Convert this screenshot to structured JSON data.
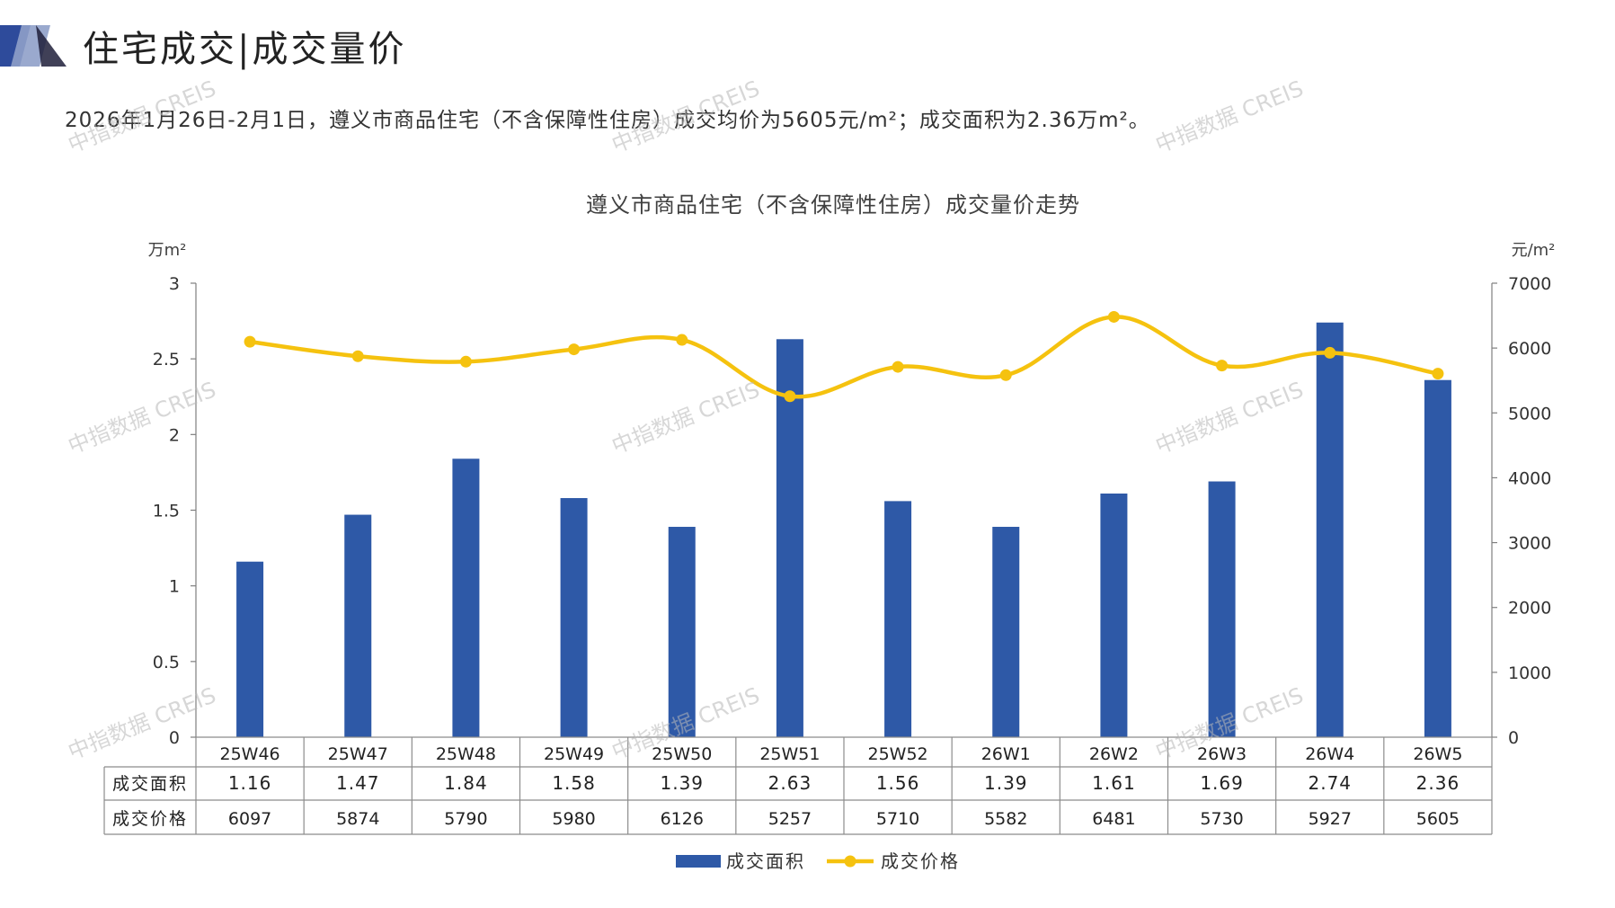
{
  "header": {
    "title": "住宅成交|成交量价",
    "summary": "2026年1月26日-2月1日，遵义市商品住宅（不含保障性住房）成交均价为5605元/m²；成交面积为2.36万m²。"
  },
  "watermark_text": "中指数据 CREIS",
  "colors": {
    "bar": "#2E59A7",
    "line": "#F5C20F",
    "axis": "#7f7f7f",
    "title_logo": "#2E4B9B"
  },
  "chart_data": {
    "type": "bar",
    "title": "遵义市商品住宅（不含保障性住房）成交量价走势",
    "ylabel_left": "万m²",
    "ylabel_right": "元/m²",
    "ylim_left": [
      0,
      3
    ],
    "ylim_right": [
      0,
      7000
    ],
    "yticks_left": [
      "0",
      "0.5",
      "1",
      "1.5",
      "2",
      "2.5",
      "3"
    ],
    "yticks_right": [
      "0",
      "1000",
      "2000",
      "3000",
      "4000",
      "5000",
      "6000",
      "7000"
    ],
    "categories": [
      "25W46",
      "25W47",
      "25W48",
      "25W49",
      "25W50",
      "25W51",
      "25W52",
      "26W1",
      "26W2",
      "26W3",
      "26W4",
      "26W5"
    ],
    "series": [
      {
        "name": "成交面积",
        "type": "bar",
        "axis": "left",
        "values": [
          1.16,
          1.47,
          1.84,
          1.58,
          1.39,
          2.63,
          1.56,
          1.39,
          1.61,
          1.69,
          2.74,
          2.36
        ],
        "labels": [
          "1.16",
          "1.47",
          "1.84",
          "1.58",
          "1.39",
          "2.63",
          "1.56",
          "1.39",
          "1.61",
          "1.69",
          "2.74",
          "2.36"
        ]
      },
      {
        "name": "成交价格",
        "type": "line",
        "axis": "right",
        "values": [
          6097,
          5874,
          5790,
          5980,
          6126,
          5257,
          5710,
          5582,
          6481,
          5730,
          5927,
          5605
        ],
        "labels": [
          "6097",
          "5874",
          "5790",
          "5980",
          "6126",
          "5257",
          "5710",
          "5582",
          "6481",
          "5730",
          "5927",
          "5605"
        ]
      }
    ],
    "legend_position": "bottom",
    "data_table": true
  }
}
